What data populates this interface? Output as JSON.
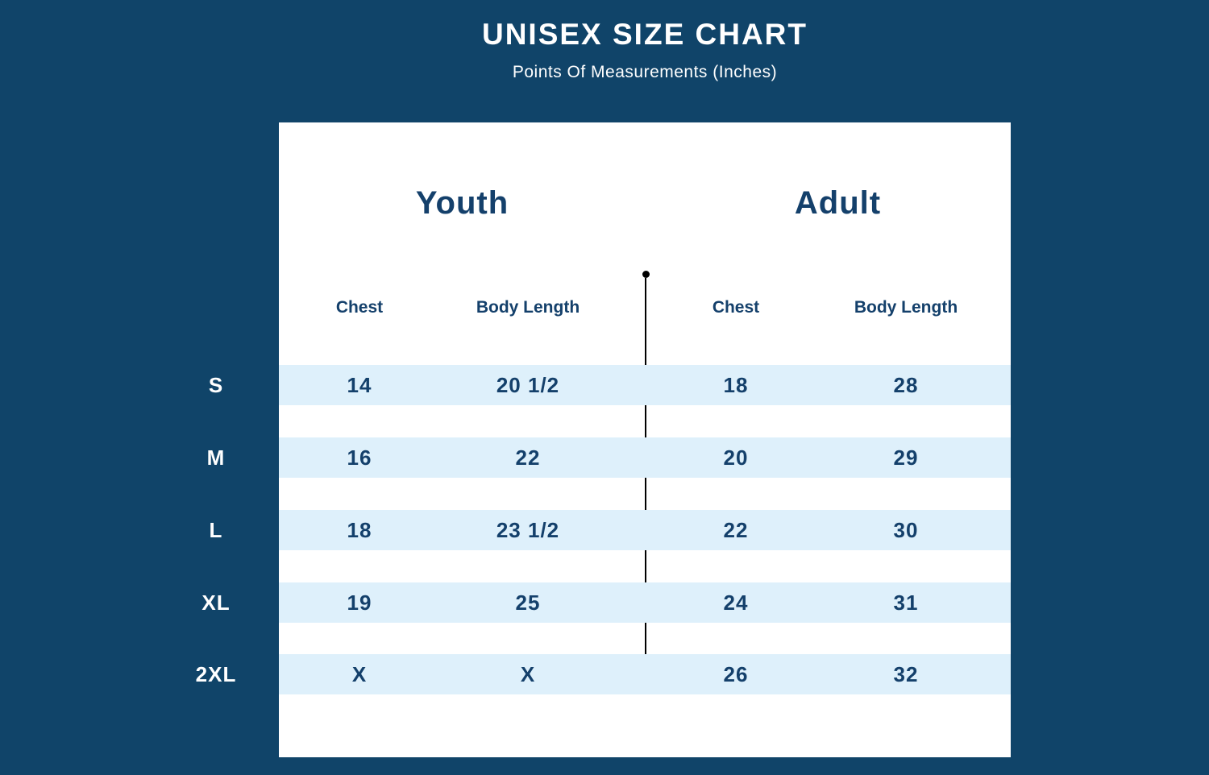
{
  "colors": {
    "background": "#104469",
    "card": "#ffffff",
    "row_stripe": "#def0fb",
    "navy_text": "#14406b",
    "white_text": "#ffffff",
    "divider": "#000000"
  },
  "chart_data": {
    "type": "table",
    "title": "UNISEX SIZE CHART",
    "subtitle": "Points Of Measurements (Inches)",
    "units": "Inches",
    "groups": [
      {
        "label": "Youth",
        "columns": [
          "Chest",
          "Body Length"
        ]
      },
      {
        "label": "Adult",
        "columns": [
          "Chest",
          "Body Length"
        ]
      }
    ],
    "rows": [
      {
        "size": "S",
        "values": [
          "14",
          "20 1/2",
          "18",
          "28"
        ]
      },
      {
        "size": "M",
        "values": [
          "16",
          "22",
          "20",
          "29"
        ]
      },
      {
        "size": "L",
        "values": [
          "18",
          "23 1/2",
          "22",
          "30"
        ]
      },
      {
        "size": "XL",
        "values": [
          "19",
          "25",
          "24",
          "31"
        ]
      },
      {
        "size": "2XL",
        "values": [
          "X",
          "X",
          "26",
          "32"
        ]
      }
    ]
  }
}
